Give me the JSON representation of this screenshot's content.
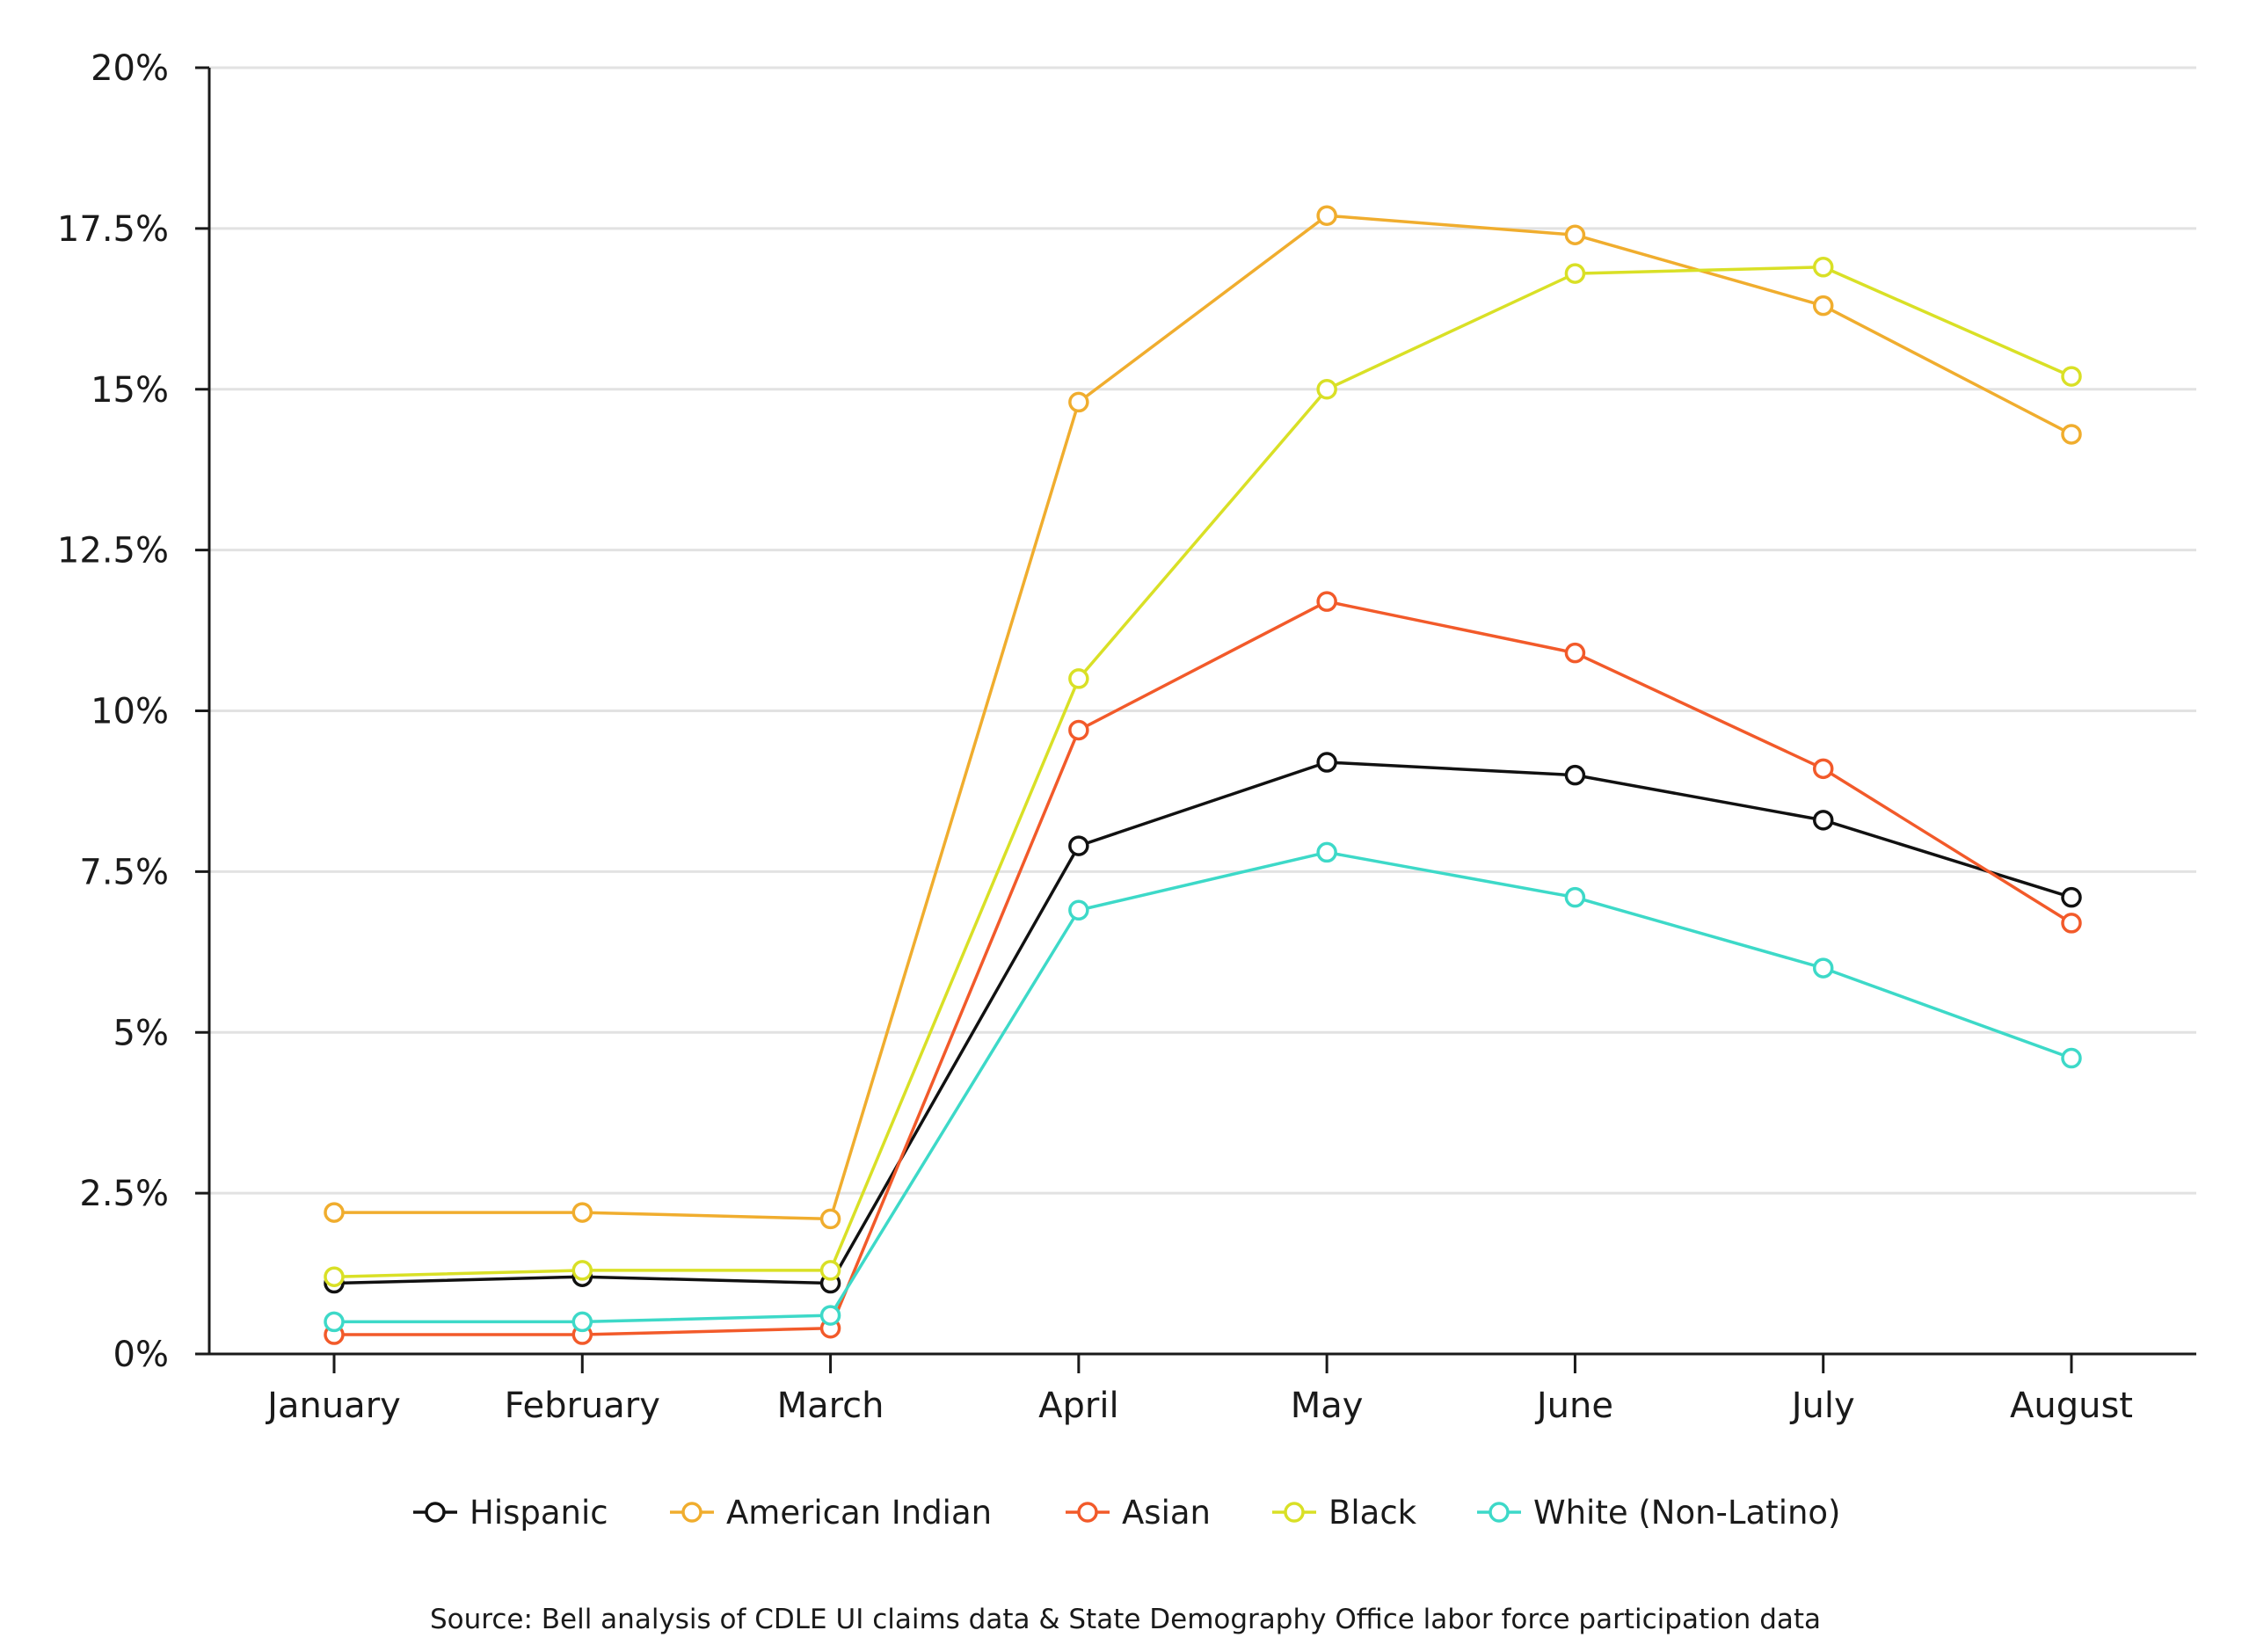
{
  "chart_data": {
    "type": "line",
    "categories": [
      "January",
      "February",
      "March",
      "April",
      "May",
      "June",
      "July",
      "August"
    ],
    "series": [
      {
        "name": "Hispanic",
        "color": "#111111",
        "values": [
          1.1,
          1.2,
          1.1,
          7.9,
          9.2,
          9.0,
          8.3,
          7.1
        ]
      },
      {
        "name": "American Indian",
        "color": "#f0ad2e",
        "values": [
          2.2,
          2.2,
          2.1,
          14.8,
          17.7,
          17.4,
          16.3,
          14.3
        ]
      },
      {
        "name": "Asian",
        "color": "#f25a2a",
        "values": [
          0.3,
          0.3,
          0.4,
          9.7,
          11.7,
          10.9,
          9.1,
          6.7
        ]
      },
      {
        "name": "Black",
        "color": "#d9e026",
        "values": [
          1.2,
          1.3,
          1.3,
          10.5,
          15.0,
          16.8,
          16.9,
          15.2
        ]
      },
      {
        "name": "White (Non-Latino)",
        "color": "#3dd9c8",
        "values": [
          0.5,
          0.5,
          0.6,
          6.9,
          7.8,
          7.1,
          6.0,
          4.6
        ]
      }
    ],
    "yticks": [
      "0%",
      "2.5%",
      "5%",
      "7.5%",
      "10%",
      "12.5%",
      "15%",
      "17.5%",
      "20%"
    ],
    "ylim": [
      0,
      20
    ],
    "grid": "horizontal",
    "legend_position": "bottom",
    "source": "Source: Bell analysis of CDLE UI claims data & State Demography Office labor force participation data"
  }
}
